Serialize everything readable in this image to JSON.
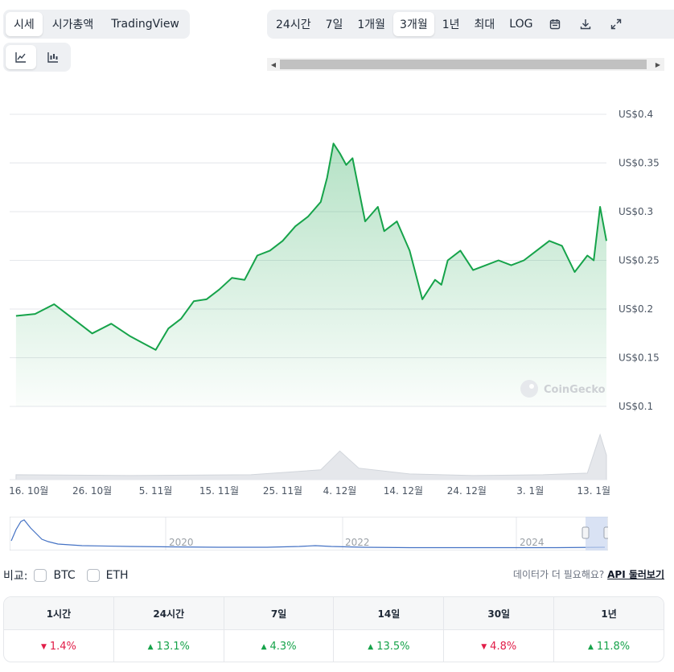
{
  "metric_tabs": [
    "시세",
    "시가총액",
    "TradingView"
  ],
  "range_tabs": [
    "24시간",
    "7일",
    "1개월",
    "3개월",
    "1년",
    "최대",
    "LOG"
  ],
  "range_selected": "3개월",
  "range_icons": [
    "calendar-icon",
    "download-icon",
    "expand-icon"
  ],
  "chart_type_icons": [
    "line-chart-icon",
    "candlestick-chart-icon"
  ],
  "colors": {
    "line": "#16a34a",
    "accent": "#16a34a",
    "down": "#e11d48",
    "navigator": "#4472c4"
  },
  "chart_data": {
    "type": "area",
    "currency_prefix": "US$",
    "ylim": [
      0.1,
      0.4
    ],
    "yticks": [
      "US$0.4",
      "US$0.35",
      "US$0.3",
      "US$0.25",
      "US$0.2",
      "US$0.15",
      "US$0.1"
    ],
    "xticks": [
      "16. 10월",
      "26. 10월",
      "5. 11월",
      "15. 11월",
      "25. 11월",
      "4. 12월",
      "14. 12월",
      "24. 12월",
      "3. 1월",
      "13. 1월"
    ],
    "series": [
      {
        "x": [
          "2024-10-14",
          "2024-10-17",
          "2024-10-20",
          "2024-10-23",
          "2024-10-26",
          "2024-10-29",
          "2024-11-01",
          "2024-11-03",
          "2024-11-05",
          "2024-11-07",
          "2024-11-09",
          "2024-11-11",
          "2024-11-13",
          "2024-11-15",
          "2024-11-17",
          "2024-11-19",
          "2024-11-21",
          "2024-11-23",
          "2024-11-25",
          "2024-11-27",
          "2024-11-29",
          "2024-12-01",
          "2024-12-02",
          "2024-12-03",
          "2024-12-04",
          "2024-12-05",
          "2024-12-06",
          "2024-12-08",
          "2024-12-10",
          "2024-12-11",
          "2024-12-13",
          "2024-12-15",
          "2024-12-17",
          "2024-12-19",
          "2024-12-20",
          "2024-12-21",
          "2024-12-23",
          "2024-12-25",
          "2024-12-27",
          "2024-12-29",
          "2024-12-31",
          "2025-01-02",
          "2025-01-04",
          "2025-01-06",
          "2025-01-08",
          "2025-01-10",
          "2025-01-12",
          "2025-01-13",
          "2025-01-14",
          "2025-01-15"
        ],
        "values": [
          0.193,
          0.195,
          0.205,
          0.19,
          0.175,
          0.185,
          0.172,
          0.165,
          0.158,
          0.18,
          0.19,
          0.208,
          0.21,
          0.22,
          0.232,
          0.23,
          0.255,
          0.26,
          0.27,
          0.285,
          0.295,
          0.31,
          0.335,
          0.37,
          0.36,
          0.348,
          0.355,
          0.29,
          0.305,
          0.28,
          0.29,
          0.26,
          0.21,
          0.23,
          0.225,
          0.25,
          0.26,
          0.24,
          0.245,
          0.25,
          0.245,
          0.25,
          0.26,
          0.27,
          0.265,
          0.238,
          0.255,
          0.25,
          0.305,
          0.27
        ]
      }
    ],
    "volume": {
      "x": [
        "2024-10-14",
        "2024-11-01",
        "2024-11-20",
        "2024-12-01",
        "2024-12-04",
        "2024-12-07",
        "2024-12-15",
        "2024-12-25",
        "2025-01-05",
        "2025-01-12",
        "2025-01-14",
        "2025-01-15"
      ],
      "values": [
        6,
        5,
        6,
        12,
        35,
        14,
        7,
        5,
        6,
        8,
        55,
        30
      ]
    }
  },
  "watermark": "CoinGecko",
  "navigator": {
    "year_labels": [
      "2020",
      "2022",
      "2024"
    ]
  },
  "compare": {
    "label": "비교:",
    "options": [
      "BTC",
      "ETH"
    ]
  },
  "api": {
    "text": "데이터가 더 필요해요? ",
    "link": "API 둘러보기"
  },
  "stats": {
    "headers": [
      "1시간",
      "24시간",
      "7일",
      "14일",
      "30일",
      "1년"
    ],
    "values": [
      {
        "value": "1.4%",
        "dir": "down"
      },
      {
        "value": "13.1%",
        "dir": "up"
      },
      {
        "value": "4.3%",
        "dir": "up"
      },
      {
        "value": "13.5%",
        "dir": "up"
      },
      {
        "value": "4.8%",
        "dir": "down"
      },
      {
        "value": "11.8%",
        "dir": "up"
      }
    ]
  }
}
